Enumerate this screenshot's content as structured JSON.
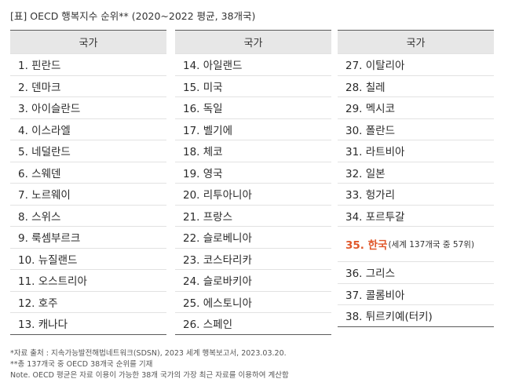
{
  "title": "[표] OECD 행복지수 순위** (2020~2022 평균, 38개국)",
  "columns": [
    {
      "header": "국가",
      "rows": [
        {
          "text": "1. 핀란드"
        },
        {
          "text": "2. 덴마크"
        },
        {
          "text": "3. 아이슬란드"
        },
        {
          "text": "4. 이스라엘"
        },
        {
          "text": "5. 네덜란드"
        },
        {
          "text": "6. 스웨덴"
        },
        {
          "text": "7. 노르웨이"
        },
        {
          "text": "8. 스위스"
        },
        {
          "text": "9. 룩셈부르크"
        },
        {
          "text": "10. 뉴질랜드"
        },
        {
          "text": "11. 오스트리아"
        },
        {
          "text": "12. 호주"
        },
        {
          "text": "13. 캐나다"
        }
      ]
    },
    {
      "header": "국가",
      "rows": [
        {
          "text": "14. 아일랜드"
        },
        {
          "text": "15. 미국"
        },
        {
          "text": "16. 독일"
        },
        {
          "text": "17. 벨기에"
        },
        {
          "text": "18. 체코"
        },
        {
          "text": "19. 영국"
        },
        {
          "text": "20. 리투아니아"
        },
        {
          "text": "21. 프랑스"
        },
        {
          "text": "22. 슬로베니아"
        },
        {
          "text": "23. 코스타리카"
        },
        {
          "text": "24. 슬로바키아"
        },
        {
          "text": "25. 에스토니아"
        },
        {
          "text": "26. 스페인"
        }
      ]
    },
    {
      "header": "국가",
      "rows": [
        {
          "text": "27. 이탈리아"
        },
        {
          "text": "28. 칠레"
        },
        {
          "text": "29. 멕시코"
        },
        {
          "text": "30. 폴란드"
        },
        {
          "text": "31. 라트비아"
        },
        {
          "text": "32. 일본"
        },
        {
          "text": "33. 헝가리"
        },
        {
          "text": "34. 포르투갈"
        },
        {
          "text": "35. 한국",
          "note": "(세계 137개국 중 57위)",
          "highlight": true
        },
        {
          "text": "36. 그리스"
        },
        {
          "text": "37. 콜롬비아"
        },
        {
          "text": "38. 튀르키예(터키)"
        }
      ]
    }
  ],
  "notes": [
    "*자료 출처 : 지속가능발전해법네트워크(SDSN), 2023 세계 행복보고서, 2023.03.20.",
    "**총 137개국 중 OECD 38개국 순위를 기재",
    "Note. OECD 평균은 자료 이용이 가능한 38개 국가의 가장 최근 자료를 이용하여 계산함"
  ],
  "colors": {
    "highlight": "#e0572a",
    "header_bg": "#e7e7e7",
    "rule": "#5a5a5a"
  }
}
